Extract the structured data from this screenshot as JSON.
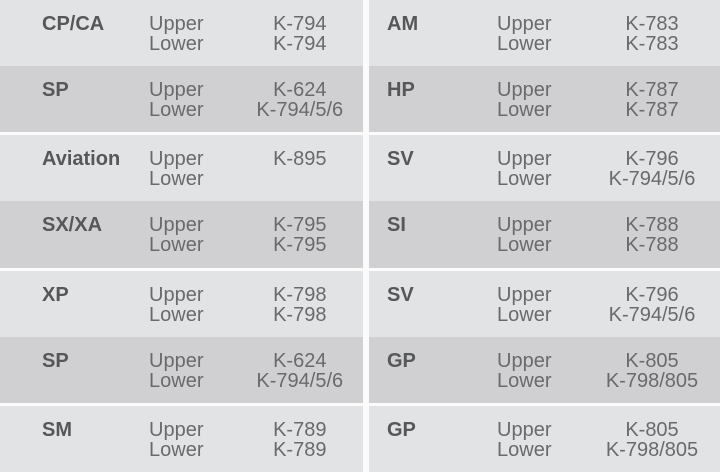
{
  "table": {
    "arch_labels": {
      "upper": "Upper",
      "lower": "Lower"
    },
    "colors": {
      "row_light": "#e2e3e4",
      "row_dark": "#d0d0d2",
      "separator": "#fbfbfb",
      "label_text": "#565759",
      "body_text": "#696a6c"
    },
    "left": [
      {
        "label": "CP/CA",
        "upper_label": "Upper",
        "lower_label": "Lower",
        "upper_value": "K-794",
        "lower_value": "K-794"
      },
      {
        "label": "SP",
        "upper_label": "Upper",
        "lower_label": "Lower",
        "upper_value": "K-624",
        "lower_value": "K-794/5/6"
      },
      {
        "label": "Aviation",
        "upper_label": "Upper",
        "lower_label": "Lower",
        "upper_value": "K-895",
        "lower_value": ""
      },
      {
        "label": "SX/XA",
        "upper_label": "Upper",
        "lower_label": "Lower",
        "upper_value": "K-795",
        "lower_value": "K-795"
      },
      {
        "label": "XP",
        "upper_label": "Upper",
        "lower_label": "Lower",
        "upper_value": "K-798",
        "lower_value": "K-798"
      },
      {
        "label": "SP",
        "upper_label": "Upper",
        "lower_label": "Lower",
        "upper_value": "K-624",
        "lower_value": "K-794/5/6"
      },
      {
        "label": "SM",
        "upper_label": "Upper",
        "lower_label": "Lower",
        "upper_value": "K-789",
        "lower_value": "K-789"
      }
    ],
    "right": [
      {
        "label": "AM",
        "upper_label": "Upper",
        "lower_label": "Lower",
        "upper_value": "K-783",
        "lower_value": "K-783"
      },
      {
        "label": "HP",
        "upper_label": "Upper",
        "lower_label": "Lower",
        "upper_value": "K-787",
        "lower_value": "K-787"
      },
      {
        "label": "SV",
        "upper_label": "Upper",
        "lower_label": "Lower",
        "upper_value": "K-796",
        "lower_value": "K-794/5/6"
      },
      {
        "label": "SI",
        "upper_label": "Upper",
        "lower_label": "Lower",
        "upper_value": "K-788",
        "lower_value": "K-788"
      },
      {
        "label": "SV",
        "upper_label": "Upper",
        "lower_label": "Lower",
        "upper_value": "K-796",
        "lower_value": "K-794/5/6"
      },
      {
        "label": "GP",
        "upper_label": "Upper",
        "lower_label": "Lower",
        "upper_value": "K-805",
        "lower_value": "K-798/805"
      },
      {
        "label": "GP",
        "upper_label": "Upper",
        "lower_label": "Lower",
        "upper_value": "K-805",
        "lower_value": "K-798/805"
      }
    ]
  }
}
